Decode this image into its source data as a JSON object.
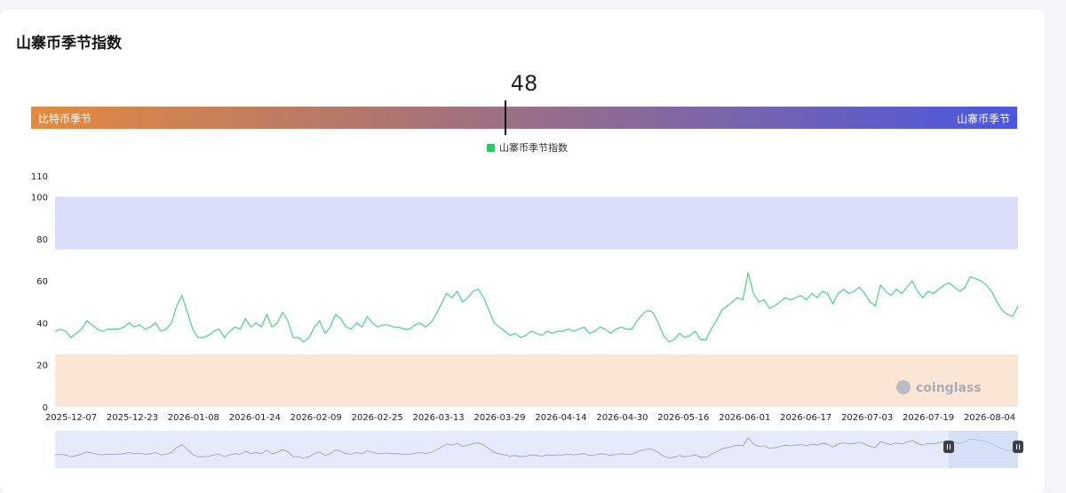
{
  "title": "山寨币季节指数",
  "current_value": "48",
  "gauge": {
    "left_label": "比特币季节",
    "right_label": "山寨币季节",
    "value": 48
  },
  "legend": {
    "label": "山寨币季节指数"
  },
  "watermark": "coinglass",
  "colors": {
    "line": "#4ccf86",
    "altcoin_band": "#d9ddfa",
    "bitcoin_band": "#fbe6d6",
    "navigator": "#e4ebfa"
  },
  "chart_data": {
    "type": "line",
    "ylim": [
      0,
      110
    ],
    "yticks": [
      0,
      20,
      40,
      60,
      80,
      100,
      110
    ],
    "xticks": [
      "2025-12-07",
      "2025-12-23",
      "2026-01-08",
      "2026-01-24",
      "2026-02-09",
      "2026-02-25",
      "2026-03-13",
      "2026-03-29",
      "2026-04-14",
      "2026-04-30",
      "2026-05-16",
      "2026-06-01",
      "2026-06-17",
      "2026-07-03",
      "2026-07-19",
      "2026-08-04"
    ],
    "bands": [
      {
        "from": 75,
        "to": 100,
        "label": "山寨币季节"
      },
      {
        "from": 0,
        "to": 25,
        "label": "比特币季节"
      }
    ],
    "x_start": "2025-12-07",
    "series": [
      {
        "name": "山寨币季节指数",
        "values": [
          36,
          37,
          36,
          33,
          35,
          37,
          41,
          39,
          37,
          36,
          37,
          37,
          37,
          38,
          40,
          38,
          39,
          37,
          38,
          40,
          36,
          37,
          40,
          48,
          53,
          45,
          37,
          33,
          33,
          34,
          36,
          37,
          33,
          36,
          38,
          37,
          42,
          38,
          40,
          38,
          44,
          38,
          40,
          45,
          41,
          33,
          33,
          31,
          33,
          38,
          41,
          35,
          38,
          44,
          42,
          38,
          37,
          40,
          38,
          43,
          40,
          38,
          39,
          39,
          38,
          38,
          37,
          37,
          39,
          40,
          38,
          40,
          44,
          49,
          54,
          52,
          55,
          50,
          52,
          55,
          56,
          52,
          46,
          40,
          38,
          36,
          34,
          35,
          33,
          34,
          36,
          35,
          34,
          36,
          35,
          36,
          36,
          37,
          36,
          37,
          38,
          35,
          36,
          38,
          37,
          35,
          37,
          38,
          37,
          37,
          41,
          44,
          46,
          45,
          40,
          34,
          31,
          32,
          35,
          33,
          34,
          36,
          32,
          32,
          37,
          41,
          46,
          48,
          50,
          52,
          51,
          64,
          54,
          50,
          51,
          47,
          48,
          50,
          52,
          51,
          52,
          53,
          51,
          54,
          52,
          55,
          54,
          49,
          54,
          56,
          54,
          55,
          57,
          54,
          50,
          48,
          58,
          55,
          53,
          56,
          54,
          57,
          60,
          55,
          52,
          55,
          54,
          56,
          58,
          59,
          57,
          55,
          57,
          62,
          61,
          60,
          58,
          55,
          50,
          46,
          44,
          43,
          48
        ]
      }
    ],
    "watermark": "coinglass"
  }
}
